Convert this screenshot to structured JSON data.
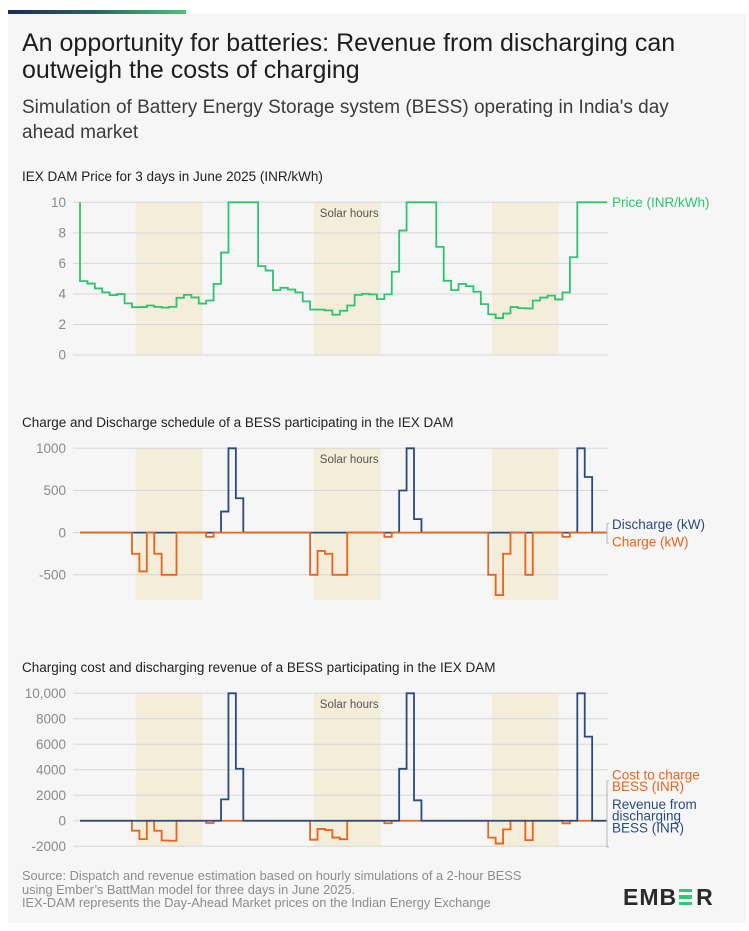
{
  "header": {
    "title": "An opportunity for batteries: Revenue from discharging can outweigh the costs of charging",
    "subtitle": "Simulation of Battery Energy Storage system (BESS) operating in India's day ahead market",
    "accent_gradient": [
      "#1d2a56",
      "#4cc47a"
    ]
  },
  "chart_data": [
    {
      "id": "price",
      "type": "line",
      "title": "IEX DAM Price for 3 days in June 2025 (INR/kWh)",
      "xlabel": "",
      "ylabel": "",
      "x_unit": "hour",
      "xlim": [
        0,
        71
      ],
      "ylim": [
        0,
        10
      ],
      "yticks": [
        0,
        2,
        4,
        6,
        8,
        10
      ],
      "ytick_labels": [
        "0",
        "2",
        "4",
        "6",
        "8",
        "10"
      ],
      "grid": true,
      "interpolation": "step",
      "legend": "right",
      "bands": {
        "label": "Solar hours",
        "color": "#f3edd9",
        "ranges": [
          [
            7.5,
            16.5
          ],
          [
            31.5,
            40.5
          ],
          [
            55.5,
            64.5
          ]
        ]
      },
      "series": [
        {
          "key": "price",
          "name": "Price (INR/kWh)",
          "legend_lines": [
            "Price (INR/kWh)"
          ],
          "color": "#2dc46f",
          "values": [
            10,
            4.84,
            4.68,
            4.36,
            4.1,
            3.92,
            3.99,
            3.38,
            3.13,
            3.14,
            3.24,
            3.15,
            3.1,
            3.15,
            3.75,
            3.94,
            3.77,
            3.37,
            3.57,
            4.66,
            6.71,
            10,
            10,
            10,
            10,
            5.82,
            5.53,
            4.25,
            4.4,
            4.29,
            4.1,
            3.51,
            2.98,
            2.97,
            2.92,
            2.64,
            2.9,
            3.24,
            3.94,
            4.01,
            3.97,
            3.66,
            3.97,
            5.45,
            8.15,
            10,
            10,
            10,
            10,
            7.08,
            4.86,
            4.25,
            4.66,
            4.51,
            4.14,
            3.33,
            2.66,
            2.42,
            2.72,
            3.14,
            3.07,
            3.05,
            3.57,
            3.76,
            3.89,
            3.64,
            4.1,
            6.4,
            10,
            10,
            10,
            10
          ]
        }
      ]
    },
    {
      "id": "schedule",
      "type": "line",
      "title": "Charge and Discharge schedule of a BESS participating in the IEX DAM",
      "xlabel": "",
      "ylabel": "",
      "x_unit": "hour",
      "xlim": [
        0,
        71
      ],
      "ylim": [
        -800,
        1000
      ],
      "yticks": [
        -500,
        0,
        500,
        1000
      ],
      "ytick_labels": [
        "-500",
        "0",
        "500",
        "1000"
      ],
      "grid": true,
      "interpolation": "step",
      "legend": "right",
      "bands": {
        "label": "Solar hours",
        "color": "#f3edd9",
        "ranges": [
          [
            7.5,
            16.5
          ],
          [
            31.5,
            40.5
          ],
          [
            55.5,
            64.5
          ]
        ]
      },
      "series": [
        {
          "key": "discharge",
          "name": "Discharge (kW)",
          "legend_lines": [
            "Discharge (kW)"
          ],
          "color": "#2b4a7e",
          "values": [
            0,
            0,
            0,
            0,
            0,
            0,
            0,
            0,
            0,
            0,
            0,
            0,
            0,
            0,
            0,
            0,
            0,
            0,
            0,
            0,
            250,
            1000,
            408,
            0,
            0,
            0,
            0,
            0,
            0,
            0,
            0,
            0,
            0,
            0,
            0,
            0,
            0,
            0,
            0,
            0,
            0,
            0,
            0,
            0,
            500,
            1000,
            160,
            0,
            0,
            0,
            0,
            0,
            0,
            0,
            0,
            0,
            0,
            0,
            0,
            0,
            0,
            0,
            0,
            0,
            0,
            0,
            0,
            0,
            1000,
            660,
            0,
            0
          ]
        },
        {
          "key": "charge",
          "name": "Charge (kW)",
          "legend_lines": [
            "Charge (kW)"
          ],
          "color": "#e8631c",
          "values": [
            0,
            0,
            0,
            0,
            0,
            0,
            0,
            0,
            -250,
            -460,
            0,
            -250,
            -500,
            -500,
            0,
            0,
            0,
            0,
            -50,
            0,
            0,
            0,
            0,
            0,
            0,
            0,
            0,
            0,
            0,
            0,
            0,
            0,
            -500,
            -217,
            -250,
            -500,
            -500,
            0,
            0,
            0,
            0,
            0,
            -50,
            0,
            0,
            0,
            0,
            0,
            0,
            0,
            0,
            0,
            0,
            0,
            0,
            0,
            -500,
            -740,
            -250,
            0,
            0,
            -500,
            0,
            0,
            0,
            0,
            -50,
            0,
            0,
            0,
            0,
            0
          ]
        }
      ]
    },
    {
      "id": "revenue",
      "type": "line",
      "title": "Charging cost and discharging revenue of a BESS participating in the IEX DAM",
      "xlabel": "",
      "ylabel": "",
      "x_unit": "hour",
      "xlim": [
        0,
        71
      ],
      "ylim": [
        -2000,
        10000
      ],
      "yticks": [
        -2000,
        0,
        2000,
        4000,
        6000,
        8000,
        10000
      ],
      "ytick_labels": [
        "-2000",
        "0",
        "2000",
        "4000",
        "6000",
        "8000",
        "10,000"
      ],
      "grid": true,
      "interpolation": "step",
      "legend": "right",
      "bands": {
        "label": "Solar hours",
        "color": "#f3edd9",
        "ranges": [
          [
            7.5,
            16.5
          ],
          [
            31.5,
            40.5
          ],
          [
            55.5,
            64.5
          ]
        ]
      },
      "series": [
        {
          "key": "cost",
          "name": "Cost to charge BESS (INR)",
          "legend_lines": [
            "Cost to charge",
            "BESS (INR)"
          ],
          "color": "#e8631c",
          "values": [
            0,
            0,
            0,
            0,
            0,
            0,
            0,
            0,
            -783,
            -1444,
            0,
            -788,
            -1550,
            -1575,
            0,
            0,
            0,
            0,
            -179,
            0,
            0,
            0,
            0,
            0,
            0,
            0,
            0,
            0,
            0,
            0,
            0,
            0,
            -1490,
            -644,
            -730,
            -1320,
            -1450,
            0,
            0,
            0,
            0,
            0,
            -199,
            0,
            0,
            0,
            0,
            0,
            0,
            0,
            0,
            0,
            0,
            0,
            0,
            0,
            -1330,
            -1791,
            -680,
            0,
            0,
            -1525,
            0,
            0,
            0,
            0,
            -205,
            0,
            0,
            0,
            0,
            0
          ]
        },
        {
          "key": "revenue",
          "name": "Revenue from discharging BESS (INR)",
          "legend_lines": [
            "Revenue from",
            "discharging",
            "BESS (INR)"
          ],
          "color": "#2b4a7e",
          "values": [
            0,
            0,
            0,
            0,
            0,
            0,
            0,
            0,
            0,
            0,
            0,
            0,
            0,
            0,
            0,
            0,
            0,
            0,
            0,
            0,
            1678,
            10000,
            4080,
            0,
            0,
            0,
            0,
            0,
            0,
            0,
            0,
            0,
            0,
            0,
            0,
            0,
            0,
            0,
            0,
            0,
            0,
            0,
            0,
            0,
            4075,
            10000,
            1600,
            0,
            0,
            0,
            0,
            0,
            0,
            0,
            0,
            0,
            0,
            0,
            0,
            0,
            0,
            0,
            0,
            0,
            0,
            0,
            0,
            0,
            10000,
            6600,
            0,
            0
          ]
        }
      ]
    }
  ],
  "footer": {
    "source_lines": [
      "Source: Dispatch and revenue estimation based on hourly simulations of a 2-hour BESS",
      "using Ember’s BattMan model for three days in June 2025.",
      "IEX-DAM represents the Day-Ahead Market prices on the Indian Energy Exchange"
    ],
    "logo": {
      "name": "EMBER",
      "left": "EMB",
      "right": "R",
      "text_color": "#2a2a2a",
      "accent_color": "#2fc874"
    }
  }
}
